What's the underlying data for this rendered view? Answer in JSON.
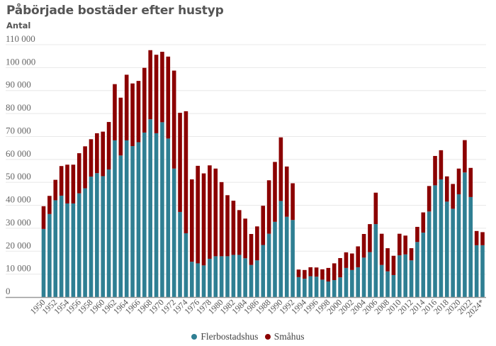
{
  "header": {
    "title": "Påbörjade bostäder efter hustyp",
    "subtitle": "Antal"
  },
  "legend": [
    {
      "label": "Flerbostadshus",
      "color": "#2f7f93"
    },
    {
      "label": "Småhus",
      "color": "#8b0000"
    }
  ],
  "colors": {
    "flerbostadshus": "#2f7f93",
    "smahus": "#8b0000",
    "grid": "#e8e8e8",
    "axis": "#999999"
  },
  "chart_data": {
    "type": "bar",
    "stacked": true,
    "title": "Påbörjade bostäder efter hustyp",
    "subtitle": "Antal",
    "xlabel": "",
    "ylabel": "Antal",
    "ylim": [
      0,
      110000
    ],
    "yticks": [
      0,
      10000,
      20000,
      30000,
      40000,
      50000,
      60000,
      70000,
      80000,
      90000,
      100000,
      110000
    ],
    "ytick_labels": [
      "0",
      "10 000",
      "20 000",
      "30 000",
      "40 000",
      "50 000",
      "60 000",
      "70 000",
      "80 000",
      "90 000",
      "100 000",
      "110 000"
    ],
    "grid": true,
    "legend_position": "bottom",
    "categories": [
      "1950",
      "1951",
      "1952",
      "1953",
      "1954",
      "1955",
      "1956",
      "1957",
      "1958",
      "1959",
      "1960",
      "1961",
      "1962",
      "1963",
      "1964",
      "1965",
      "1966",
      "1967",
      "1968",
      "1969",
      "1970",
      "1971",
      "1972",
      "1973",
      "1974",
      "1975",
      "1976",
      "1977",
      "1978",
      "1979",
      "1980",
      "1981",
      "1982",
      "1983",
      "1984",
      "1985",
      "1986",
      "1987",
      "1988",
      "1989",
      "1990",
      "1991",
      "1992",
      "1993",
      "1994",
      "1995",
      "1996",
      "1997",
      "1998",
      "1999",
      "2000",
      "2001",
      "2002",
      "2003",
      "2004",
      "2005",
      "2006",
      "2007",
      "2008",
      "2009",
      "2010",
      "2011",
      "2012",
      "2013",
      "2014",
      "2015",
      "2016",
      "2017",
      "2018",
      "2019",
      "2020",
      "2021",
      "2022",
      "2023",
      "2024*"
    ],
    "xtick_labels_shown": [
      "1950",
      "1952",
      "1954",
      "1956",
      "1958",
      "1960",
      "1962",
      "1964",
      "1966",
      "1968",
      "1970",
      "1972",
      "1974",
      "1976",
      "1978",
      "1980",
      "1982",
      "1984",
      "1986",
      "1988",
      "1990",
      "1992",
      "1994",
      "1996",
      "1998",
      "2000",
      "2002",
      "2004",
      "2006",
      "2008",
      "2010",
      "2012",
      "2014",
      "2016",
      "2018",
      "2020",
      "2022",
      "2024*"
    ],
    "series": [
      {
        "name": "Flerbostadshus",
        "color": "#2f7f93",
        "values": [
          29700,
          36200,
          42200,
          44200,
          40800,
          40800,
          45200,
          47400,
          52500,
          54000,
          52700,
          55600,
          68300,
          61700,
          68300,
          65800,
          67500,
          71700,
          77500,
          71400,
          76200,
          69100,
          56000,
          37100,
          27800,
          15400,
          14700,
          13800,
          16700,
          17800,
          17800,
          17800,
          18400,
          18400,
          16900,
          14000,
          16000,
          22700,
          27600,
          32800,
          41900,
          35000,
          33600,
          8700,
          8000,
          9100,
          8900,
          7600,
          6800,
          7400,
          8600,
          12700,
          11800,
          13000,
          17200,
          19600,
          31800,
          14000,
          11200,
          9600,
          18200,
          18600,
          16000,
          24000,
          28100,
          37300,
          48700,
          51300,
          41600,
          38500,
          44800,
          54300,
          43600,
          22600,
          22600
        ]
      },
      {
        "name": "Småhus",
        "color": "#8b0000",
        "values": [
          9900,
          7900,
          8900,
          12900,
          16900,
          16900,
          17500,
          18300,
          16300,
          17400,
          19400,
          20700,
          24500,
          25200,
          28600,
          27300,
          26700,
          28200,
          30100,
          34200,
          30700,
          35700,
          42700,
          43200,
          53200,
          35900,
          42500,
          40100,
          40700,
          38200,
          32300,
          26600,
          23600,
          19500,
          17300,
          13500,
          14800,
          17100,
          23300,
          26100,
          27700,
          21900,
          16000,
          3300,
          3800,
          3900,
          4000,
          4500,
          5900,
          7300,
          8400,
          6800,
          7200,
          9100,
          10300,
          12200,
          13700,
          13600,
          10100,
          8400,
          9400,
          8200,
          5300,
          6600,
          8800,
          11100,
          12800,
          12700,
          11000,
          10800,
          11200,
          14100,
          12700,
          6200,
          5700
        ]
      }
    ]
  }
}
